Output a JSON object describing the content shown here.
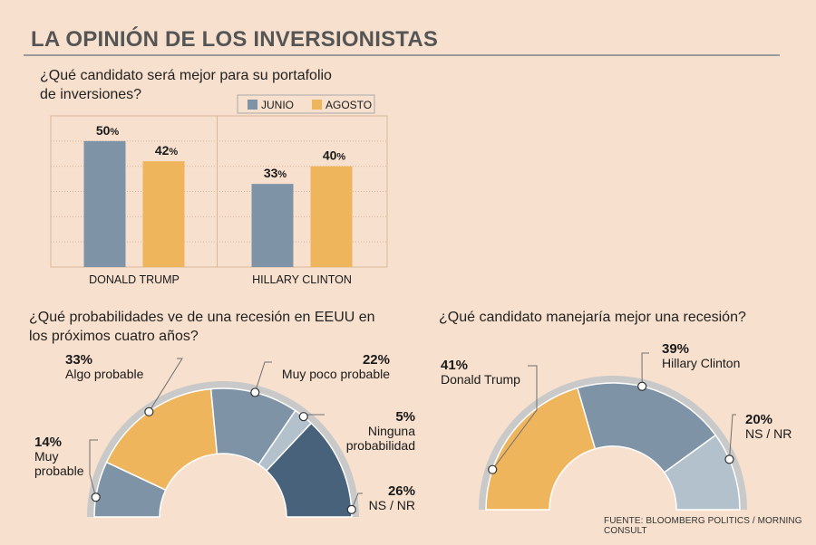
{
  "title": "LA OPINIÓN DE LOS INVERSIONISTAS",
  "colors": {
    "background": "#f7e0cd",
    "junio": "#7f93a6",
    "agosto": "#efb55c",
    "dark": "#47627a",
    "light": "#b3c1cd",
    "ring": "#c9c9c9",
    "grid": "#d8b79a"
  },
  "chart_data": [
    {
      "type": "bar",
      "title": "¿Qué candidato será mejor para su portafolio de inversiones?",
      "categories": [
        "DONALD TRUMP",
        "HILLARY CLINTON"
      ],
      "series": [
        {
          "name": "JUNIO",
          "values": [
            50,
            33
          ],
          "labels": [
            "50",
            "33"
          ]
        },
        {
          "name": "AGOSTO",
          "values": [
            42,
            40
          ],
          "labels": [
            "42",
            "40"
          ]
        }
      ],
      "unit": "%",
      "ylim": [
        0,
        60
      ],
      "grid": true,
      "legend": "top-right"
    },
    {
      "type": "pie",
      "title": "¿Qué probabilidades ve de una recesión en EEUU en los próximos cuatro años?",
      "slices": [
        {
          "name": "Muy probable",
          "value": 14,
          "label": "14%",
          "color": "#7f93a6"
        },
        {
          "name": "Algo probable",
          "value": 33,
          "label": "33%",
          "color": "#efb55c"
        },
        {
          "name": "Muy poco probable",
          "value": 22,
          "label": "22%",
          "color": "#7f93a6"
        },
        {
          "name": "Ninguna probabilidad",
          "value": 5,
          "label": "5%",
          "color": "#b3c1cd"
        },
        {
          "name": "NS / NR",
          "value": 26,
          "label": "26%",
          "color": "#47627a"
        }
      ]
    },
    {
      "type": "pie",
      "title": "¿Qué candidato manejaría mejor una recesión?",
      "slices": [
        {
          "name": "Donald Trump",
          "value": 41,
          "label": "41%",
          "color": "#efb55c"
        },
        {
          "name": "Hillary Clinton",
          "value": 39,
          "label": "39%",
          "color": "#7f93a6"
        },
        {
          "name": "NS / NR",
          "value": 20,
          "label": "20%",
          "color": "#b3c1cd"
        }
      ]
    }
  ],
  "source": "FUENTE: BLOOMBERG POLITICS / MORNING CONSULT"
}
